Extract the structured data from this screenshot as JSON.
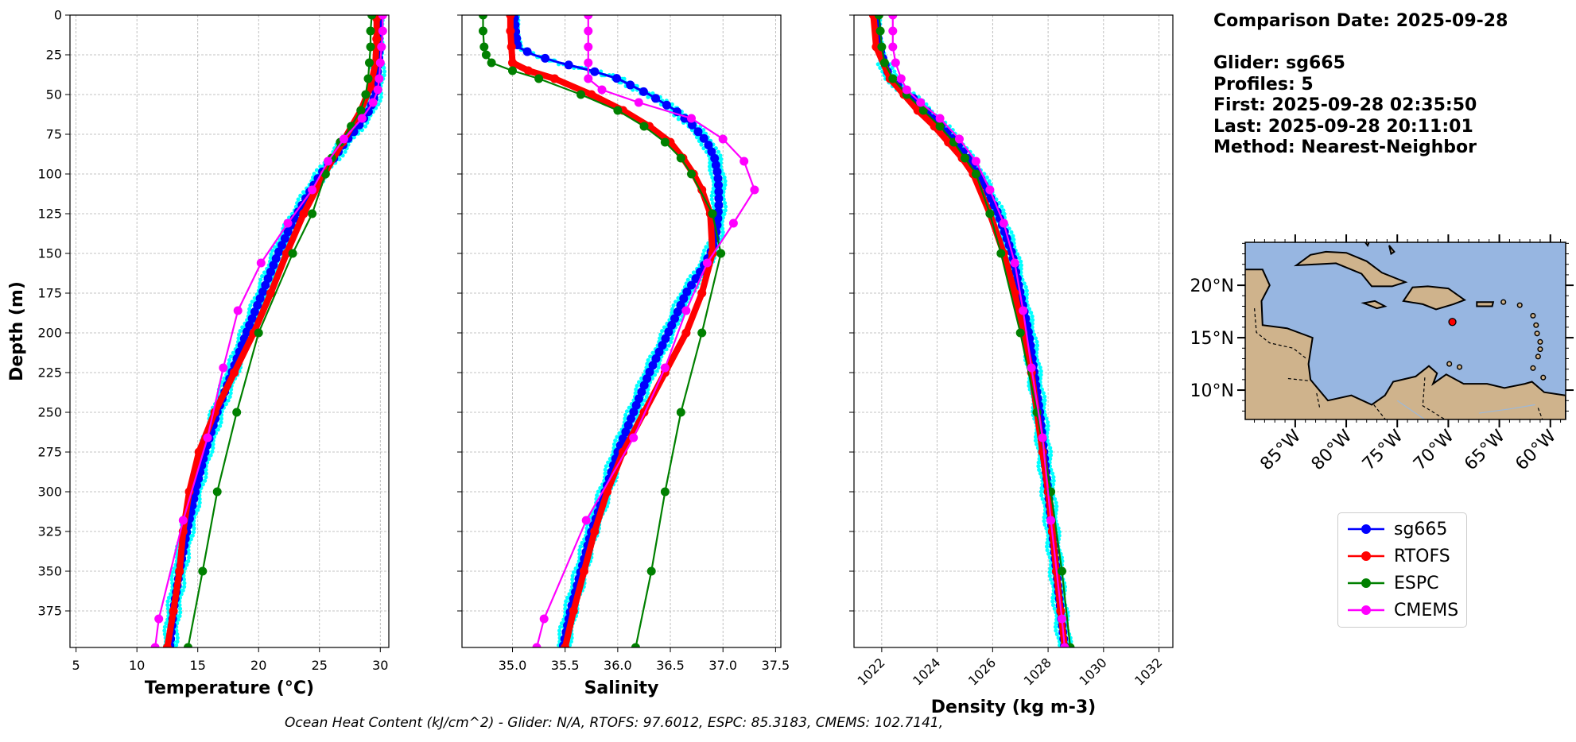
{
  "info": {
    "comparison_date": "Comparison Date: 2025-09-28",
    "glider": "Glider: sg665",
    "profiles": "Profiles: 5",
    "first": "First: 2025-09-28 02:35:50",
    "last": "Last: 2025-09-28 20:11:01",
    "method": "Method: Nearest-Neighbor"
  },
  "footer": "Ocean Heat Content (kJ/cm^2) - Glider: N/A,  RTOFS: 97.6012,  ESPC: 85.3183,  CMEMS: 102.7141,",
  "colors": {
    "glider": "#0000ff",
    "glider_raw": "#00ffff",
    "rtofs": "#ff0000",
    "espc": "#008000",
    "cmems": "#ff00ff"
  },
  "legend": [
    {
      "label": "sg665",
      "color": "#0000ff"
    },
    {
      "label": "RTOFS",
      "color": "#ff0000"
    },
    {
      "label": "ESPC",
      "color": "#008000"
    },
    {
      "label": "CMEMS",
      "color": "#ff00ff"
    }
  ],
  "map": {
    "lat_ticks": [
      "20°N",
      "15°N",
      "10°N"
    ],
    "lon_ticks": [
      "85°W",
      "80°W",
      "75°W",
      "70°W",
      "65°W",
      "60°W"
    ],
    "ocean_color": "#97b6e1",
    "land_color": "#cfb38c",
    "glider_location": {
      "lon": -69.6,
      "lat": 16.5
    }
  },
  "chart_data": [
    {
      "type": "line",
      "xlabel": "Temperature (°C)",
      "ylabel": "Depth (m)",
      "xlim": [
        4.5,
        30.7
      ],
      "ylim": [
        398,
        0
      ],
      "x_ticks": [
        5,
        10,
        15,
        20,
        25,
        30
      ],
      "y_ticks": [
        0,
        25,
        50,
        75,
        100,
        125,
        150,
        175,
        200,
        225,
        250,
        275,
        300,
        325,
        350,
        375
      ],
      "grid": true,
      "series": [
        {
          "name": "sg665",
          "depth": [
            2,
            25,
            50,
            60,
            70,
            80,
            90,
            100,
            115,
            130,
            150,
            175,
            200,
            225,
            250,
            275,
            300,
            325,
            350,
            375,
            398
          ],
          "values": [
            29.9,
            29.9,
            29.6,
            29.1,
            28.2,
            27.1,
            26.2,
            25.1,
            23.9,
            22.8,
            21.6,
            20.3,
            19.0,
            17.8,
            16.6,
            15.6,
            14.8,
            14.1,
            13.5,
            13.0,
            12.7
          ]
        },
        {
          "name": "RTOFS",
          "depth": [
            2,
            15,
            30,
            45,
            60,
            80,
            100,
            125,
            150,
            175,
            200,
            225,
            250,
            275,
            300,
            325,
            350,
            375,
            398
          ],
          "values": [
            29.7,
            29.7,
            29.6,
            29.2,
            28.4,
            26.9,
            25.4,
            23.7,
            22.3,
            21.0,
            19.6,
            18.0,
            16.4,
            15.1,
            14.3,
            13.8,
            13.5,
            13.0,
            12.5
          ]
        },
        {
          "name": "ESPC",
          "depth": [
            0,
            10,
            20,
            30,
            40,
            50,
            60,
            70,
            80,
            90,
            100,
            125,
            150,
            200,
            250,
            300,
            350,
            398
          ],
          "values": [
            29.3,
            29.2,
            29.2,
            29.1,
            29.0,
            28.8,
            28.4,
            27.6,
            26.7,
            26.0,
            25.5,
            24.4,
            22.8,
            20.0,
            18.2,
            16.6,
            15.4,
            14.2
          ]
        },
        {
          "name": "CMEMS",
          "depth": [
            0,
            10,
            20,
            30,
            40,
            47,
            55,
            65,
            78,
            92,
            110,
            131,
            156,
            186,
            222,
            266,
            318,
            380,
            398
          ],
          "values": [
            30.2,
            30.2,
            30.1,
            30.0,
            29.9,
            29.8,
            29.4,
            28.5,
            27.0,
            25.7,
            24.4,
            22.4,
            20.2,
            18.3,
            17.1,
            15.8,
            13.8,
            11.8,
            11.5
          ]
        }
      ]
    },
    {
      "type": "line",
      "xlabel": "Salinity",
      "ylabel": "",
      "xlim": [
        34.52,
        37.55
      ],
      "ylim": [
        398,
        0
      ],
      "x_ticks": [
        35.0,
        35.5,
        36.0,
        36.5,
        37.0,
        37.5
      ],
      "grid": true,
      "series": [
        {
          "name": "sg665",
          "depth": [
            2,
            10,
            20,
            25,
            30,
            35,
            40,
            50,
            60,
            70,
            80,
            90,
            100,
            110,
            120,
            130,
            140,
            150,
            160,
            175,
            200,
            225,
            250,
            275,
            300,
            325,
            350,
            375,
            398
          ],
          "values": [
            35.02,
            35.03,
            35.05,
            35.2,
            35.45,
            35.75,
            36.0,
            36.3,
            36.55,
            36.72,
            36.85,
            36.92,
            36.95,
            36.96,
            36.96,
            36.95,
            36.93,
            36.88,
            36.8,
            36.65,
            36.48,
            36.3,
            36.15,
            36.0,
            35.88,
            35.75,
            35.65,
            35.55,
            35.48
          ]
        },
        {
          "name": "RTOFS",
          "depth": [
            0,
            10,
            20,
            30,
            35,
            40,
            50,
            60,
            70,
            80,
            90,
            100,
            110,
            125,
            150,
            175,
            200,
            225,
            250,
            275,
            300,
            325,
            350,
            375,
            398
          ],
          "values": [
            34.98,
            34.98,
            34.99,
            35.0,
            35.15,
            35.4,
            35.75,
            36.05,
            36.3,
            36.5,
            36.62,
            36.72,
            36.8,
            36.88,
            36.9,
            36.8,
            36.65,
            36.45,
            36.25,
            36.05,
            35.9,
            35.78,
            35.68,
            35.58,
            35.5
          ]
        },
        {
          "name": "ESPC",
          "depth": [
            0,
            10,
            20,
            25,
            30,
            35,
            40,
            50,
            60,
            70,
            80,
            90,
            100,
            125,
            150,
            200,
            250,
            300,
            350,
            398
          ],
          "values": [
            34.72,
            34.72,
            34.73,
            34.75,
            34.8,
            35.0,
            35.25,
            35.65,
            36.0,
            36.25,
            36.45,
            36.6,
            36.7,
            36.9,
            36.98,
            36.8,
            36.6,
            36.45,
            36.32,
            36.17
          ]
        },
        {
          "name": "CMEMS",
          "depth": [
            0,
            10,
            20,
            30,
            40,
            47,
            55,
            65,
            78,
            92,
            110,
            131,
            156,
            186,
            222,
            266,
            318,
            380,
            398
          ],
          "values": [
            35.72,
            35.72,
            35.72,
            35.72,
            35.72,
            35.85,
            36.2,
            36.7,
            37.0,
            37.2,
            37.3,
            37.1,
            36.85,
            36.65,
            36.45,
            36.15,
            35.7,
            35.3,
            35.23
          ]
        }
      ]
    },
    {
      "type": "line",
      "xlabel": "Density (kg m-3)",
      "ylabel": "",
      "xlim": [
        1021.0,
        1032.5
      ],
      "ylim": [
        398,
        0
      ],
      "x_ticks": [
        1022,
        1024,
        1026,
        1028,
        1030,
        1032
      ],
      "grid": true,
      "series": [
        {
          "name": "sg665",
          "depth": [
            2,
            20,
            40,
            50,
            60,
            70,
            80,
            90,
            100,
            125,
            150,
            175,
            200,
            225,
            250,
            275,
            300,
            325,
            350,
            375,
            398
          ],
          "values": [
            1021.8,
            1021.9,
            1022.3,
            1023.0,
            1023.6,
            1024.2,
            1024.7,
            1025.1,
            1025.5,
            1026.2,
            1026.7,
            1027.0,
            1027.3,
            1027.5,
            1027.7,
            1027.85,
            1028.0,
            1028.15,
            1028.3,
            1028.45,
            1028.6
          ]
        },
        {
          "name": "RTOFS",
          "depth": [
            0,
            20,
            40,
            50,
            60,
            70,
            80,
            90,
            100,
            125,
            150,
            175,
            200,
            225,
            250,
            275,
            300,
            325,
            350,
            375,
            398
          ],
          "values": [
            1021.7,
            1021.8,
            1022.3,
            1022.8,
            1023.3,
            1023.9,
            1024.4,
            1024.9,
            1025.3,
            1025.9,
            1026.4,
            1026.8,
            1027.1,
            1027.4,
            1027.6,
            1027.8,
            1028.0,
            1028.15,
            1028.3,
            1028.45,
            1028.6
          ]
        },
        {
          "name": "ESPC",
          "depth": [
            0,
            10,
            20,
            30,
            40,
            50,
            60,
            70,
            80,
            90,
            100,
            125,
            150,
            200,
            250,
            300,
            350,
            398
          ],
          "values": [
            1021.9,
            1021.95,
            1022.0,
            1022.1,
            1022.4,
            1022.9,
            1023.5,
            1024.1,
            1024.6,
            1025.0,
            1025.4,
            1025.9,
            1026.3,
            1027.0,
            1027.6,
            1028.1,
            1028.5,
            1028.8
          ]
        },
        {
          "name": "CMEMS",
          "depth": [
            0,
            10,
            20,
            30,
            40,
            47,
            55,
            65,
            78,
            92,
            110,
            131,
            156,
            186,
            222,
            266,
            318,
            380,
            398
          ],
          "values": [
            1022.4,
            1022.4,
            1022.4,
            1022.5,
            1022.7,
            1022.9,
            1023.4,
            1024.1,
            1024.8,
            1025.4,
            1025.9,
            1026.4,
            1026.8,
            1027.1,
            1027.4,
            1027.8,
            1028.1,
            1028.5,
            1028.6
          ]
        }
      ]
    }
  ]
}
